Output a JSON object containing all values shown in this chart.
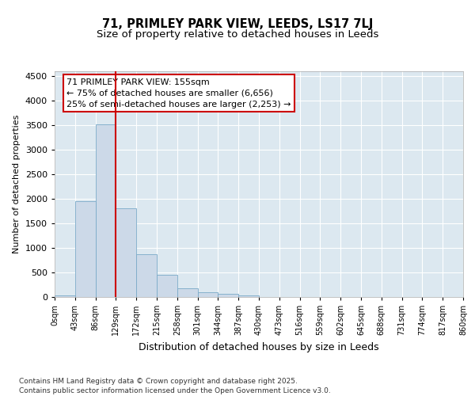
{
  "title_line1": "71, PRIMLEY PARK VIEW, LEEDS, LS17 7LJ",
  "title_line2": "Size of property relative to detached houses in Leeds",
  "xlabel": "Distribution of detached houses by size in Leeds",
  "ylabel": "Number of detached properties",
  "bar_values": [
    30,
    1950,
    3520,
    1800,
    870,
    450,
    175,
    95,
    60,
    40,
    0,
    0,
    0,
    0,
    0,
    0,
    0,
    0,
    0,
    0
  ],
  "bin_labels": [
    "0sqm",
    "43sqm",
    "86sqm",
    "129sqm",
    "172sqm",
    "215sqm",
    "258sqm",
    "301sqm",
    "344sqm",
    "387sqm",
    "430sqm",
    "473sqm",
    "516sqm",
    "559sqm",
    "602sqm",
    "645sqm",
    "688sqm",
    "731sqm",
    "774sqm",
    "817sqm",
    "860sqm"
  ],
  "bar_color": "#ccd9e8",
  "bar_edge_color": "#7aaac8",
  "vline_x": 3.0,
  "vline_color": "#cc0000",
  "annotation_text": "71 PRIMLEY PARK VIEW: 155sqm\n← 75% of detached houses are smaller (6,656)\n25% of semi-detached houses are larger (2,253) →",
  "annotation_box_color": "#ffffff",
  "annotation_box_edge_color": "#cc0000",
  "ylim": [
    0,
    4600
  ],
  "yticks": [
    0,
    500,
    1000,
    1500,
    2000,
    2500,
    3000,
    3500,
    4000,
    4500
  ],
  "background_color": "#dce8f0",
  "grid_color": "#ffffff",
  "footer_text": "Contains HM Land Registry data © Crown copyright and database right 2025.\nContains public sector information licensed under the Open Government Licence v3.0.",
  "title_fontsize": 10.5,
  "subtitle_fontsize": 9.5,
  "annotation_fontsize": 8,
  "footer_fontsize": 6.5,
  "ylabel_fontsize": 8,
  "xlabel_fontsize": 9
}
